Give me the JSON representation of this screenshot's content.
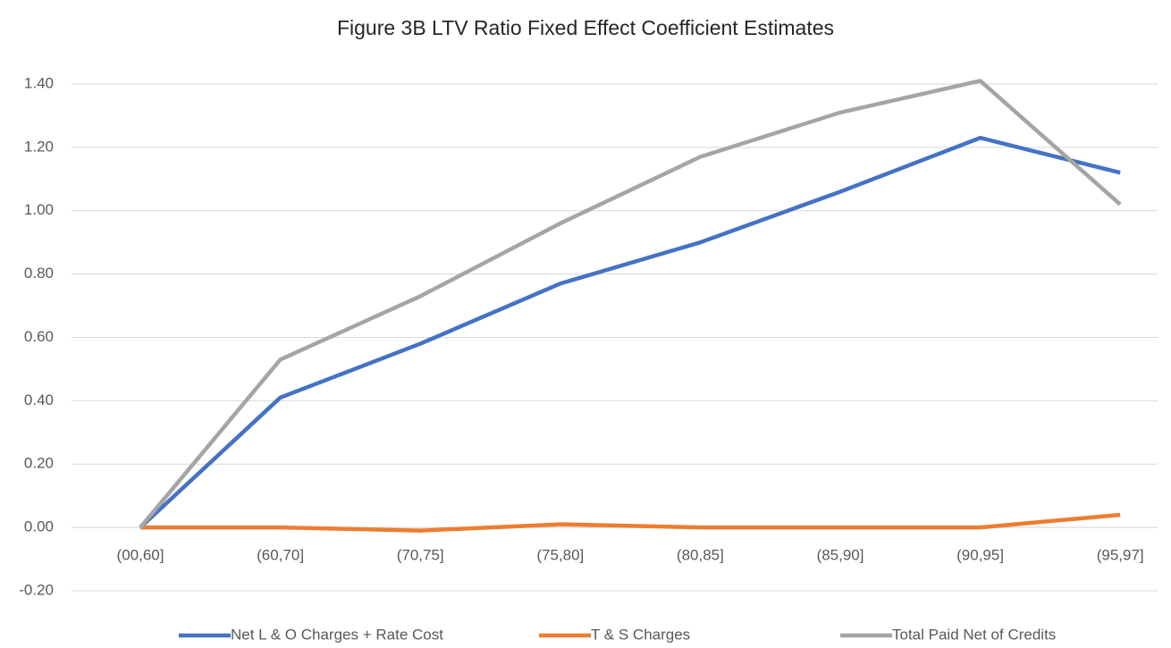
{
  "chart_data": {
    "type": "line",
    "title": "Figure 3B LTV Ratio Fixed Effect Coefficient Estimates",
    "categories": [
      "(00,60]",
      "(60,70]",
      "(70,75]",
      "(75,80]",
      "(80,85]",
      "(85,90]",
      "(90,95]",
      "(95,97]"
    ],
    "series": [
      {
        "name": "Net L & O Charges + Rate Cost",
        "color": "#4472c4",
        "values": [
          0,
          0.41,
          0.58,
          0.77,
          0.9,
          1.06,
          1.23,
          1.12
        ]
      },
      {
        "name": "T & S Charges",
        "color": "#ed7d31",
        "values": [
          0,
          0.0,
          -0.01,
          0.01,
          0.0,
          0.0,
          0.0,
          0.04
        ]
      },
      {
        "name": "Total Paid Net of Credits",
        "color": "#a5a5a5",
        "values": [
          0,
          0.53,
          0.73,
          0.96,
          1.17,
          1.31,
          1.41,
          1.02
        ]
      }
    ],
    "ylim": [
      -0.2,
      1.4
    ],
    "yticks": [
      {
        "value": -0.2,
        "label": "-0.20"
      },
      {
        "value": 0,
        "label": "0.00"
      },
      {
        "value": 0.2,
        "label": "0.20"
      },
      {
        "value": 0.4,
        "label": "0.40"
      },
      {
        "value": 0.6,
        "label": "0.60"
      },
      {
        "value": 0.8,
        "label": "0.80"
      },
      {
        "value": 1.0,
        "label": "1.00"
      },
      {
        "value": 1.2,
        "label": "1.20"
      },
      {
        "value": 1.4,
        "label": "1.40"
      }
    ],
    "grid": true,
    "legend": "bottom"
  }
}
